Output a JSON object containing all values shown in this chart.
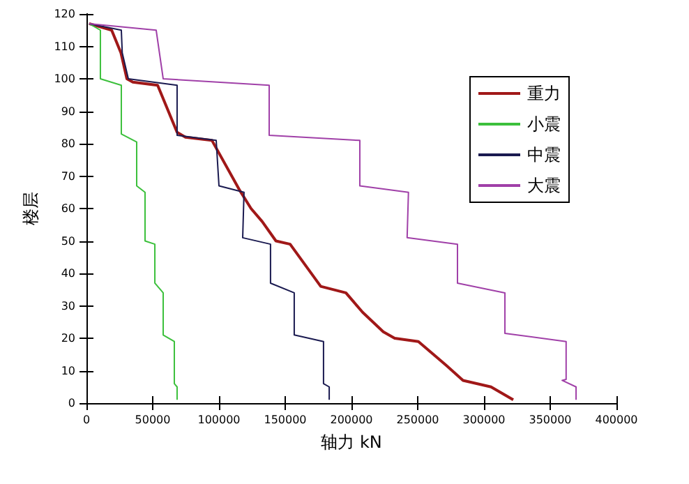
{
  "chart_data": {
    "type": "line",
    "xlabel": "轴力 kN",
    "ylabel": "楼层",
    "xlim": [
      0,
      400000
    ],
    "xticks": [
      0,
      50000,
      100000,
      150000,
      200000,
      250000,
      300000,
      350000,
      400000
    ],
    "ylim": [
      0,
      120
    ],
    "yticks": [
      0,
      10,
      20,
      30,
      40,
      50,
      60,
      70,
      80,
      90,
      100,
      110,
      120
    ],
    "grid": false,
    "legend": "top right",
    "marker": "none",
    "line_style": "solid",
    "series": [
      {
        "name": "重力",
        "color": "#a01818",
        "x": [
          2000,
          19000,
          26000,
          30500,
          35000,
          53700,
          68400,
          74700,
          94700,
          115800,
          124200,
          132600,
          143000,
          153700,
          176800,
          195800,
          208400,
          224000,
          232600,
          250500,
          271600,
          284200,
          305300,
          313700,
          322100
        ],
        "values": [
          117,
          115,
          108,
          100,
          99,
          98,
          83.5,
          82,
          81,
          65.5,
          60,
          56,
          50,
          49,
          36,
          34,
          28,
          22,
          20,
          19,
          11.6,
          7,
          5,
          3,
          1
        ]
      },
      {
        "name": "小震",
        "color": "#3cc03c",
        "x": [
          2000,
          10500,
          10500,
          26300,
          26300,
          37900,
          37900,
          44200,
          44200,
          51600,
          51600,
          57900,
          57900,
          66300,
          66300,
          68400,
          68400
        ],
        "values": [
          117,
          115,
          100,
          98,
          83,
          80.5,
          67,
          65,
          50,
          49,
          37,
          34,
          21,
          19,
          6,
          5,
          1
        ]
      },
      {
        "name": "中震",
        "color": "#1a1a50",
        "x": [
          2000,
          26300,
          27000,
          31600,
          68400,
          68400,
          97900,
          100000,
          118900,
          117900,
          138900,
          138900,
          156800,
          156800,
          178900,
          178900,
          183200,
          183200
        ],
        "values": [
          117,
          115,
          108,
          100,
          98,
          82.6,
          81,
          67,
          65,
          51,
          49,
          37,
          34,
          21,
          19,
          6,
          5,
          1
        ]
      },
      {
        "name": "大震",
        "color": "#a040a8",
        "x": [
          2000,
          52600,
          57900,
          137900,
          137900,
          206300,
          206300,
          224200,
          243000,
          242000,
          280000,
          280000,
          315800,
          315800,
          362000,
          362000,
          359000,
          369500,
          369500
        ],
        "values": [
          117,
          115,
          100,
          98,
          82.6,
          81,
          67,
          66,
          65,
          51,
          49,
          37,
          34,
          21.5,
          19,
          7.3,
          7,
          5,
          1
        ]
      }
    ]
  }
}
